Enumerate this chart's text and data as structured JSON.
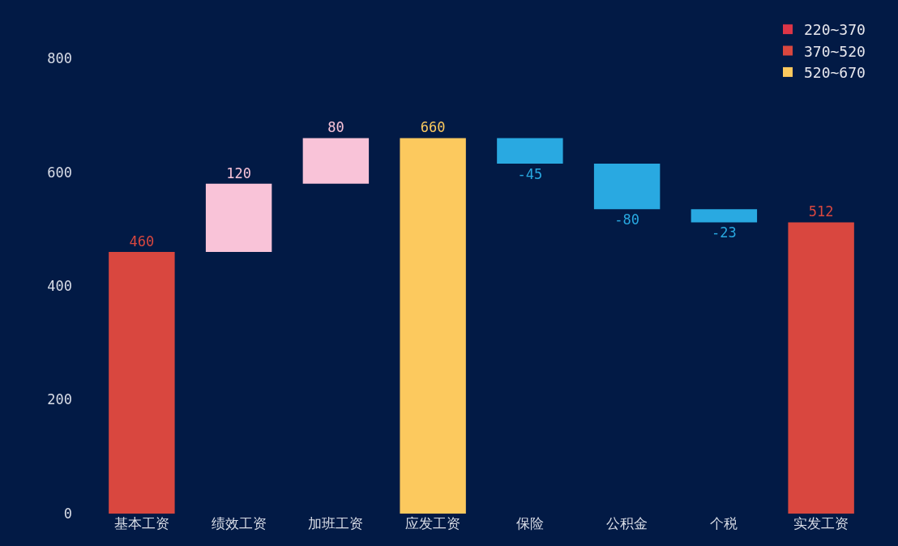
{
  "chart_data": {
    "type": "bar",
    "categories": [
      "基本工资",
      "绩效工资",
      "加班工资",
      "应发工资",
      "保险",
      "公积金",
      "个税",
      "实发工资"
    ],
    "base": [
      0,
      460,
      580,
      0,
      660,
      615,
      535,
      0
    ],
    "values": [
      460,
      120,
      80,
      660,
      -45,
      -80,
      -23,
      512
    ],
    "colors": [
      "#d9473f",
      "#f9c3d8",
      "#f9c3d8",
      "#fcc95e",
      "#29a9e1",
      "#29a9e1",
      "#29a9e1",
      "#d9473f"
    ],
    "series": [
      {
        "name": "220~370",
        "color": "#dc3547",
        "values": [
          null,
          null,
          null,
          null,
          null,
          null,
          null,
          null
        ]
      },
      {
        "name": "370~520",
        "color": "#d9473f",
        "values": [
          null,
          null,
          null,
          null,
          null,
          null,
          null,
          null
        ]
      },
      {
        "name": "520~670",
        "color": "#fcc95e",
        "values": [
          null,
          null,
          null,
          null,
          null,
          null,
          null,
          null
        ]
      }
    ],
    "data_labels": true,
    "ylim": [
      0,
      860
    ],
    "yticks": [
      0,
      200,
      400,
      600,
      800
    ],
    "grid": false,
    "legend": "top right"
  }
}
